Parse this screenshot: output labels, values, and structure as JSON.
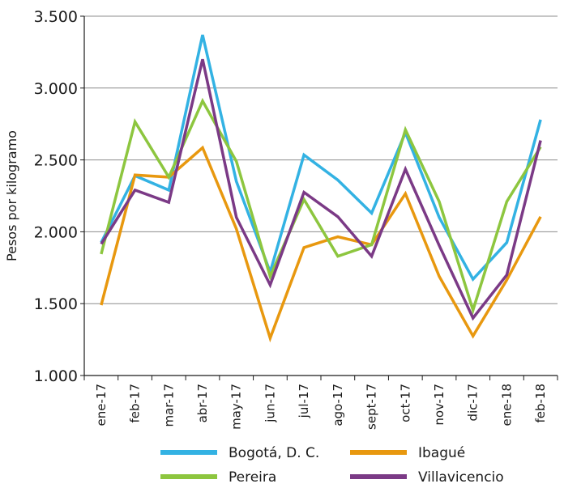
{
  "chart_data": {
    "type": "line",
    "title": "",
    "xlabel": "",
    "ylabel": "Pesos por kilogramo",
    "ylim": [
      1000,
      3500
    ],
    "yticks": [
      1000,
      1500,
      2000,
      2500,
      3000,
      3500
    ],
    "ytick_labels": [
      "1.000",
      "1.500",
      "2.000",
      "2.500",
      "3.000",
      "3.500"
    ],
    "grid": "horizontal",
    "legend_position": "bottom",
    "categories": [
      "ene-17",
      "feb-17",
      "mar-17",
      "abr-17",
      "may-17",
      "jun-17",
      "jul-17",
      "ago-17",
      "sept-17",
      "oct-17",
      "nov-17",
      "dic-17",
      "ene-18",
      "feb-18"
    ],
    "series": [
      {
        "name": "Bogotá, D. C.",
        "color": "#33b2e3",
        "values": [
          1925,
          2390,
          2290,
          3370,
          2350,
          1720,
          2535,
          2360,
          2130,
          2690,
          2100,
          1670,
          1925,
          2780
        ]
      },
      {
        "name": "Ibagué",
        "color": "#e8980f",
        "values": [
          1490,
          2395,
          2380,
          2585,
          2020,
          1260,
          1890,
          1965,
          1910,
          2265,
          1690,
          1275,
          1665,
          2105
        ]
      },
      {
        "name": "Pereira",
        "color": "#8dc63f",
        "values": [
          1845,
          2765,
          2380,
          2910,
          2490,
          1690,
          2225,
          1830,
          1910,
          2710,
          2210,
          1455,
          2210,
          2590
        ]
      },
      {
        "name": "Villavicencio",
        "color": "#7b3a86",
        "values": [
          1915,
          2290,
          2205,
          3200,
          2100,
          1630,
          2275,
          2105,
          1830,
          2435,
          1905,
          1400,
          1700,
          2635
        ]
      }
    ]
  }
}
